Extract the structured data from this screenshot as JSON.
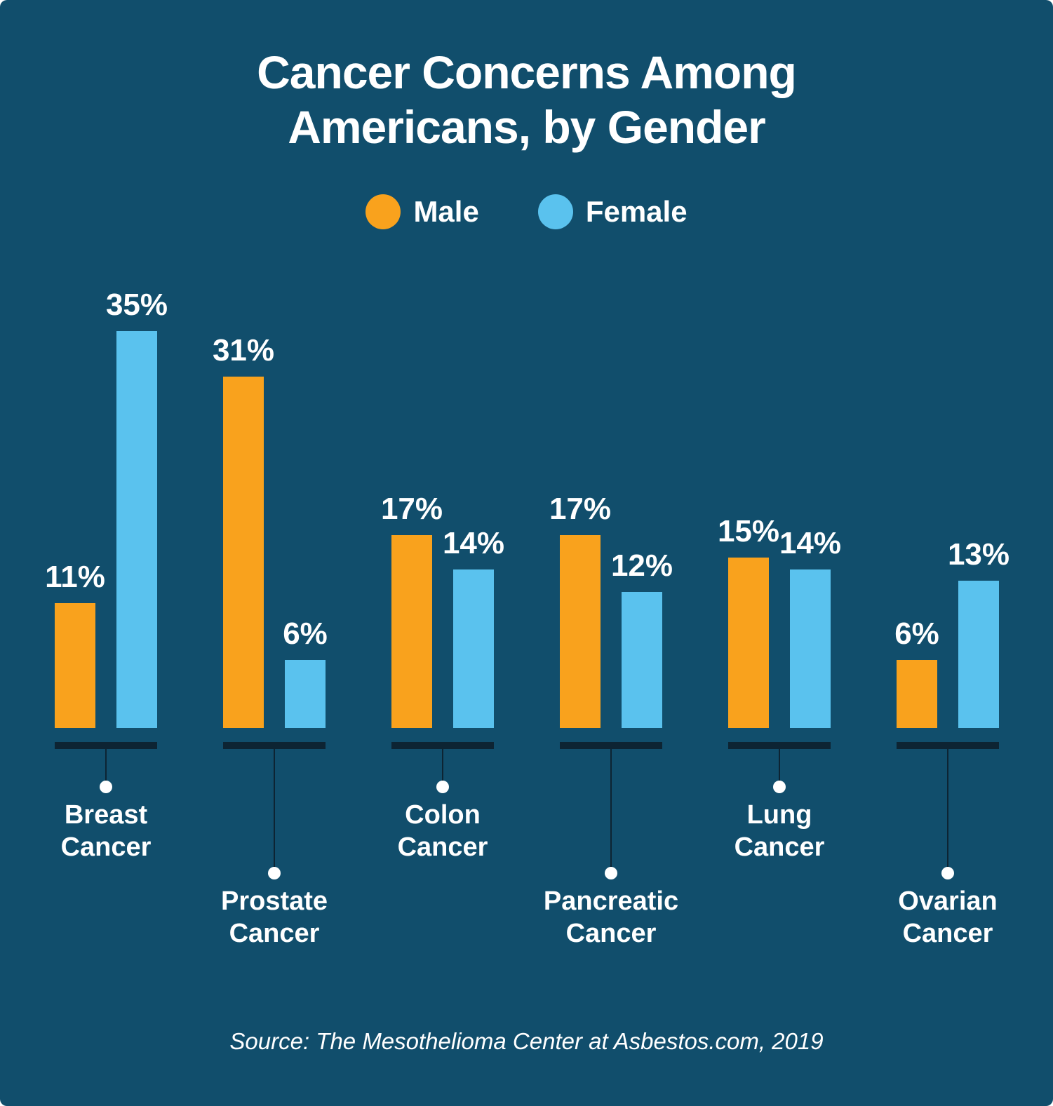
{
  "title": {
    "line1": "Cancer Concerns Among",
    "line2": "Americans, by Gender"
  },
  "colors": {
    "background": "#114E6C",
    "male": "#F9A21D",
    "female": "#5AC2EE",
    "axis": "#0D2433",
    "text": "#FFFFFF"
  },
  "source": "Source: The Mesothelioma Center at Asbestos.com, 2019",
  "chart_data": {
    "type": "bar",
    "title": "Cancer Concerns Among Americans, by Gender",
    "categories": [
      "Breast Cancer",
      "Prostate Cancer",
      "Colon Cancer",
      "Pancreatic Cancer",
      "Lung Cancer",
      "Ovarian Cancer"
    ],
    "series": [
      {
        "name": "Male",
        "color": "#F9A21D",
        "values": [
          11,
          31,
          17,
          17,
          15,
          6
        ]
      },
      {
        "name": "Female",
        "color": "#5AC2EE",
        "values": [
          35,
          6,
          14,
          12,
          14,
          13
        ]
      }
    ],
    "value_suffix": "%",
    "ylim": [
      0,
      35
    ],
    "grid": false,
    "legend_position": "top",
    "value_labels": "above-bars"
  }
}
